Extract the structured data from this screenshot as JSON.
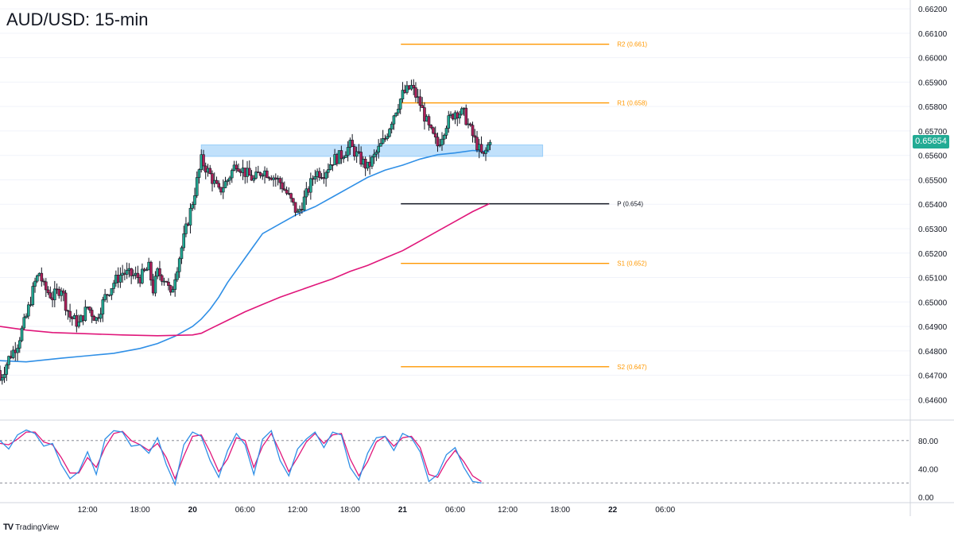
{
  "header": {
    "title": "AUD/USD: 15-min"
  },
  "brand": {
    "logo_text": "TV",
    "name": "TradingView",
    "icon": "tradingview-logo-icon"
  },
  "colors": {
    "up_candle": "#22ab94",
    "down_candle": "#b01f5a",
    "wick": "#131722",
    "ema_fast": "#2f8fe6",
    "ema_slow": "#e0167a",
    "pivot_levels": "#ff9800",
    "pivot_p": "#131722",
    "zone_fill": "#bbdefb",
    "zone_stroke": "#90caf9",
    "stoch_k": "#2f8fe6",
    "stoch_d": "#e0167a",
    "last_price_badge": "#22ab94"
  },
  "chart_data": {
    "type": "candlestick",
    "title": "AUD/USD: 15-min",
    "price_axis": {
      "ylim": [
        0.6452,
        0.6621
      ],
      "ticks": [
        "0.66200",
        "0.66100",
        "0.66000",
        "0.65900",
        "0.65800",
        "0.65700",
        "0.65600",
        "0.65500",
        "0.65400",
        "0.65300",
        "0.65200",
        "0.65100",
        "0.65000",
        "0.64900",
        "0.64800",
        "0.64700",
        "0.64600"
      ]
    },
    "time_axis": {
      "xlim_hours": [
        0,
        104
      ],
      "ticks": [
        {
          "t": 10,
          "label": "12:00",
          "bold": false
        },
        {
          "t": 16,
          "label": "18:00",
          "bold": false
        },
        {
          "t": 22,
          "label": "20",
          "bold": true
        },
        {
          "t": 28,
          "label": "06:00",
          "bold": false
        },
        {
          "t": 34,
          "label": "12:00",
          "bold": false
        },
        {
          "t": 40,
          "label": "18:00",
          "bold": false
        },
        {
          "t": 46,
          "label": "21",
          "bold": true
        },
        {
          "t": 52,
          "label": "06:00",
          "bold": false
        },
        {
          "t": 58,
          "label": "12:00",
          "bold": false
        },
        {
          "t": 64,
          "label": "18:00",
          "bold": false
        },
        {
          "t": 70,
          "label": "22",
          "bold": true
        },
        {
          "t": 76,
          "label": "06:00",
          "bold": false
        }
      ]
    },
    "last_price": "0.65654",
    "last_price_value": 0.65654,
    "pivot_levels": [
      {
        "label": "R2 (0.661)",
        "value": 0.66055,
        "t_start": 45.8,
        "t_end": 69.6
      },
      {
        "label": "R1 (0.658)",
        "value": 0.65815,
        "t_start": 45.8,
        "t_end": 69.6
      },
      {
        "label": "P (0.654)",
        "value": 0.65402,
        "t_start": 45.8,
        "t_end": 69.6
      },
      {
        "label": "S1 (0.652)",
        "value": 0.65158,
        "t_start": 45.8,
        "t_end": 69.6
      },
      {
        "label": "S2 (0.647)",
        "value": 0.64735,
        "t_start": 45.8,
        "t_end": 69.6
      }
    ],
    "zone": {
      "low": 0.65596,
      "high": 0.65643,
      "t_start": 23.0,
      "t_end": 62.0
    },
    "moving_averages": [
      {
        "name": "ema_fast",
        "points": [
          [
            0,
            0.6476
          ],
          [
            3,
            0.64755
          ],
          [
            7,
            0.6477
          ],
          [
            10,
            0.6478
          ],
          [
            13,
            0.6479
          ],
          [
            16,
            0.6481
          ],
          [
            18,
            0.6483
          ],
          [
            20,
            0.6486
          ],
          [
            22,
            0.649
          ],
          [
            23,
            0.6493
          ],
          [
            24,
            0.6497
          ],
          [
            25,
            0.6502
          ],
          [
            26,
            0.6508
          ],
          [
            27,
            0.6513
          ],
          [
            28,
            0.6518
          ],
          [
            29,
            0.6523
          ],
          [
            30,
            0.6528
          ],
          [
            32,
            0.6532
          ],
          [
            34,
            0.6536
          ],
          [
            36,
            0.6539
          ],
          [
            38,
            0.6543
          ],
          [
            40,
            0.6547
          ],
          [
            42,
            0.6551
          ],
          [
            44,
            0.6554
          ],
          [
            46,
            0.6556
          ],
          [
            48,
            0.65585
          ],
          [
            50,
            0.65603
          ],
          [
            52,
            0.6561
          ],
          [
            54,
            0.6562
          ],
          [
            55.9,
            0.65615
          ]
        ]
      },
      {
        "name": "ema_slow",
        "points": [
          [
            0,
            0.649
          ],
          [
            3,
            0.64885
          ],
          [
            6,
            0.64875
          ],
          [
            10,
            0.6487
          ],
          [
            14,
            0.64865
          ],
          [
            18,
            0.64862
          ],
          [
            22,
            0.64865
          ],
          [
            23,
            0.64872
          ],
          [
            24,
            0.6489
          ],
          [
            26,
            0.64925
          ],
          [
            28,
            0.6496
          ],
          [
            30,
            0.6499
          ],
          [
            32,
            0.6502
          ],
          [
            34,
            0.65045
          ],
          [
            36,
            0.6507
          ],
          [
            38,
            0.65095
          ],
          [
            40,
            0.65125
          ],
          [
            42,
            0.6515
          ],
          [
            44,
            0.6518
          ],
          [
            46,
            0.6521
          ],
          [
            48,
            0.6525
          ],
          [
            50,
            0.6529
          ],
          [
            52,
            0.6533
          ],
          [
            54,
            0.6537
          ],
          [
            55.9,
            0.65402
          ]
        ]
      }
    ],
    "candle_path": [
      [
        0,
        0.6468
      ],
      [
        1,
        0.6477
      ],
      [
        2,
        0.6483
      ],
      [
        3,
        0.6494
      ],
      [
        4,
        0.6508
      ],
      [
        4.5,
        0.6512
      ],
      [
        5,
        0.6506
      ],
      [
        6,
        0.6502
      ],
      [
        7,
        0.6506
      ],
      [
        7.5,
        0.6499
      ],
      [
        8,
        0.6494
      ],
      [
        9,
        0.6491
      ],
      [
        10,
        0.6498
      ],
      [
        11,
        0.6493
      ],
      [
        12,
        0.6502
      ],
      [
        13,
        0.6508
      ],
      [
        14,
        0.6512
      ],
      [
        15,
        0.6511
      ],
      [
        16,
        0.651
      ],
      [
        17,
        0.6514
      ],
      [
        17.5,
        0.6505
      ],
      [
        18,
        0.6512
      ],
      [
        19,
        0.6509
      ],
      [
        19.5,
        0.6502
      ],
      [
        20,
        0.6511
      ],
      [
        21,
        0.6526
      ],
      [
        22,
        0.6541
      ],
      [
        23,
        0.6558
      ],
      [
        24,
        0.6552
      ],
      [
        25,
        0.6545
      ],
      [
        26,
        0.655
      ],
      [
        27,
        0.6557
      ],
      [
        28,
        0.6553
      ],
      [
        29,
        0.655
      ],
      [
        30,
        0.6554
      ],
      [
        31,
        0.6552
      ],
      [
        32,
        0.6549
      ],
      [
        33,
        0.6543
      ],
      [
        34,
        0.6536
      ],
      [
        35,
        0.6544
      ],
      [
        36,
        0.6553
      ],
      [
        37,
        0.6553
      ],
      [
        38,
        0.6558
      ],
      [
        39,
        0.656
      ],
      [
        40,
        0.6564
      ],
      [
        41,
        0.6559
      ],
      [
        42,
        0.6555
      ],
      [
        43,
        0.6561
      ],
      [
        44,
        0.6567
      ],
      [
        45,
        0.6577
      ],
      [
        46,
        0.6585
      ],
      [
        47,
        0.6588
      ],
      [
        48,
        0.6581
      ],
      [
        49,
        0.6571
      ],
      [
        50,
        0.6564
      ],
      [
        51,
        0.6573
      ],
      [
        52,
        0.6578
      ],
      [
        53,
        0.6577
      ],
      [
        54,
        0.6568
      ],
      [
        55.2,
        0.6559
      ],
      [
        55.9,
        0.65654
      ]
    ],
    "stochastic": {
      "ylim": [
        0,
        100
      ],
      "ticks": [
        "80.00",
        "40.00",
        "0.00"
      ],
      "bands": [
        80,
        20
      ],
      "k_points": [
        [
          0,
          80
        ],
        [
          1,
          68
        ],
        [
          2,
          88
        ],
        [
          3,
          95
        ],
        [
          4,
          90
        ],
        [
          5,
          72
        ],
        [
          6,
          76
        ],
        [
          7,
          46
        ],
        [
          8,
          26
        ],
        [
          9,
          36
        ],
        [
          10,
          64
        ],
        [
          11,
          32
        ],
        [
          12,
          82
        ],
        [
          13,
          94
        ],
        [
          14,
          92
        ],
        [
          15,
          72
        ],
        [
          16,
          74
        ],
        [
          17,
          62
        ],
        [
          18,
          84
        ],
        [
          19,
          46
        ],
        [
          20,
          18
        ],
        [
          21,
          74
        ],
        [
          22,
          92
        ],
        [
          23,
          86
        ],
        [
          24,
          52
        ],
        [
          25,
          28
        ],
        [
          26,
          66
        ],
        [
          27,
          90
        ],
        [
          28,
          74
        ],
        [
          29,
          32
        ],
        [
          30,
          82
        ],
        [
          31,
          94
        ],
        [
          32,
          52
        ],
        [
          33,
          30
        ],
        [
          34,
          68
        ],
        [
          35,
          82
        ],
        [
          36,
          92
        ],
        [
          37,
          70
        ],
        [
          38,
          92
        ],
        [
          39,
          88
        ],
        [
          40,
          42
        ],
        [
          41,
          24
        ],
        [
          42,
          62
        ],
        [
          43,
          84
        ],
        [
          44,
          86
        ],
        [
          45,
          66
        ],
        [
          46,
          90
        ],
        [
          47,
          84
        ],
        [
          48,
          64
        ],
        [
          49,
          22
        ],
        [
          50,
          32
        ],
        [
          51,
          60
        ],
        [
          52,
          70
        ],
        [
          53,
          42
        ],
        [
          54,
          22
        ],
        [
          55,
          20
        ]
      ],
      "d_points": [
        [
          0,
          76
        ],
        [
          1,
          74
        ],
        [
          2,
          82
        ],
        [
          3,
          92
        ],
        [
          4,
          92
        ],
        [
          5,
          78
        ],
        [
          6,
          74
        ],
        [
          7,
          56
        ],
        [
          8,
          34
        ],
        [
          9,
          34
        ],
        [
          10,
          56
        ],
        [
          11,
          42
        ],
        [
          12,
          70
        ],
        [
          13,
          90
        ],
        [
          14,
          93
        ],
        [
          15,
          80
        ],
        [
          16,
          74
        ],
        [
          17,
          66
        ],
        [
          18,
          76
        ],
        [
          19,
          56
        ],
        [
          20,
          26
        ],
        [
          21,
          58
        ],
        [
          22,
          86
        ],
        [
          23,
          88
        ],
        [
          24,
          64
        ],
        [
          25,
          36
        ],
        [
          26,
          54
        ],
        [
          27,
          84
        ],
        [
          28,
          80
        ],
        [
          29,
          42
        ],
        [
          30,
          72
        ],
        [
          31,
          90
        ],
        [
          32,
          64
        ],
        [
          33,
          36
        ],
        [
          34,
          56
        ],
        [
          35,
          78
        ],
        [
          36,
          90
        ],
        [
          37,
          76
        ],
        [
          38,
          88
        ],
        [
          39,
          90
        ],
        [
          40,
          54
        ],
        [
          41,
          30
        ],
        [
          42,
          50
        ],
        [
          43,
          78
        ],
        [
          44,
          86
        ],
        [
          45,
          72
        ],
        [
          46,
          84
        ],
        [
          47,
          86
        ],
        [
          48,
          70
        ],
        [
          49,
          32
        ],
        [
          50,
          28
        ],
        [
          51,
          50
        ],
        [
          52,
          66
        ],
        [
          53,
          50
        ],
        [
          54,
          30
        ],
        [
          55,
          22
        ]
      ]
    }
  }
}
